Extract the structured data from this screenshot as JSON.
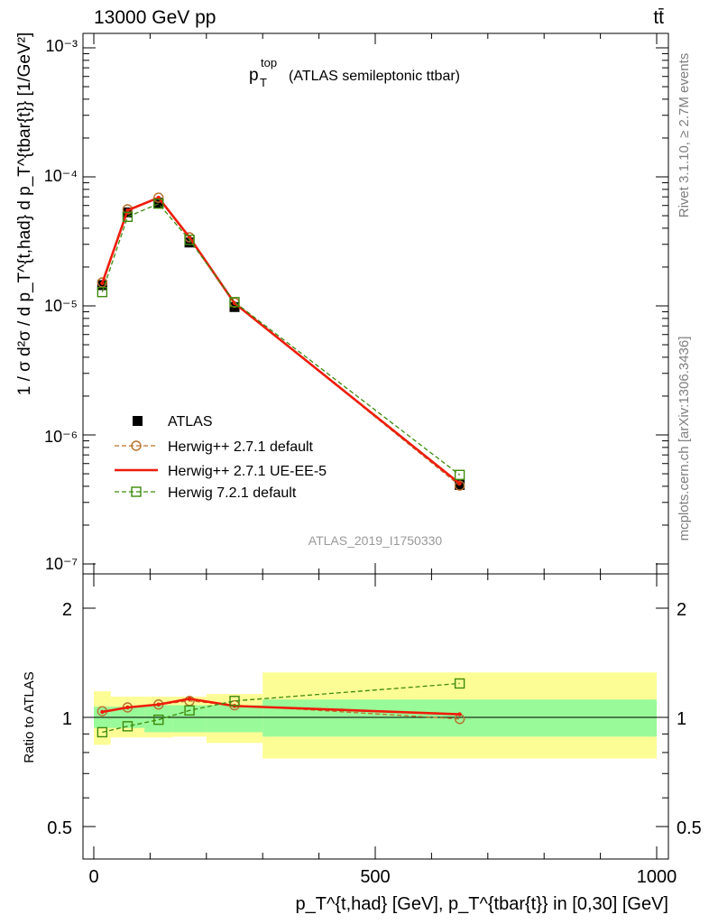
{
  "header": {
    "collision": "13000 GeV pp",
    "process": "tt̄"
  },
  "side_labels": {
    "rivet": "Rivet 3.1.10, ≥ 2.7M events",
    "source": "mcplots.cern.ch [arXiv:1306.3436]"
  },
  "chart_data": [
    {
      "type": "line",
      "panel": "main",
      "title_base": "p",
      "title_sub": "T",
      "title_sup": "top",
      "title_rest": "(ATLAS semileptonic ttbar)",
      "watermark": "ATLAS_2019_I1750330",
      "ylabel": "1 / σ d²σ / d p_T^{t,had} d p_T^{tbar{t}} [1/GeV²]",
      "yscale": "log",
      "ylim": [
        1e-07,
        0.0013
      ],
      "xlim": [
        -20,
        1010
      ],
      "ytick_labels": [
        "10⁻⁷",
        "10⁻⁶",
        "10⁻⁵",
        "10⁻⁴",
        "10⁻³"
      ],
      "legend_position": "lower-left",
      "series": [
        {
          "name": "ATLAS",
          "style": "data",
          "color": "#000000",
          "x": [
            15,
            60,
            115,
            170,
            250,
            650
          ],
          "values": [
            1.45e-05,
            5.3e-05,
            6.3e-05,
            3.1e-05,
            9.8e-06,
            4.1e-07
          ]
        },
        {
          "name": "Herwig++ 2.7.1 default",
          "style": "dashed-circle",
          "color": "#b8712d",
          "x": [
            15,
            60,
            115,
            170,
            250,
            650
          ],
          "values": [
            1.52e-05,
            5.6e-05,
            6.9e-05,
            3.4e-05,
            1.06e-05,
            4.05e-07
          ]
        },
        {
          "name": "Herwig++ 2.7.1 UE-EE-5",
          "style": "solid",
          "color": "#ee1c0a",
          "x": [
            15,
            60,
            115,
            170,
            250,
            650
          ],
          "values": [
            1.5e-05,
            5.5e-05,
            6.9e-05,
            3.4e-05,
            1.05e-05,
            4.2e-07
          ]
        },
        {
          "name": "Herwig 7.2.1 default",
          "style": "dashed-square",
          "color": "#3d8a0c",
          "x": [
            15,
            60,
            115,
            170,
            250,
            650
          ],
          "values": [
            1.28e-05,
            4.9e-05,
            6.2e-05,
            3.25e-05,
            1.07e-05,
            4.9e-07
          ]
        }
      ]
    },
    {
      "type": "line",
      "panel": "ratio",
      "ylabel": "Ratio to ATLAS",
      "xlabel": "p_T^{t,had} [GeV], p_T^{tbar{t}} in [0,30] [GeV]",
      "ylim": [
        0.38,
        2.45
      ],
      "ytick_labels": [
        "0.5",
        "1",
        "2"
      ],
      "xtick_labels": [
        "0",
        "500",
        "1000"
      ],
      "bands": [
        {
          "x0": 0,
          "x1": 30,
          "stat": [
            0.935,
            1.07
          ],
          "total": [
            0.84,
            1.18
          ]
        },
        {
          "x0": 30,
          "x1": 90,
          "stat": [
            0.935,
            1.07
          ],
          "total": [
            0.88,
            1.14
          ]
        },
        {
          "x0": 90,
          "x1": 140,
          "stat": [
            0.91,
            1.08
          ],
          "total": [
            0.88,
            1.14
          ]
        },
        {
          "x0": 140,
          "x1": 200,
          "stat": [
            0.91,
            1.08
          ],
          "total": [
            0.885,
            1.14
          ]
        },
        {
          "x0": 200,
          "x1": 300,
          "stat": [
            0.91,
            1.08
          ],
          "total": [
            0.85,
            1.16
          ]
        },
        {
          "x0": 300,
          "x1": 1000,
          "stat": [
            0.885,
            1.12
          ],
          "total": [
            0.77,
            1.33
          ]
        }
      ],
      "series": [
        {
          "name": "Herwig++ 2.7.1 default",
          "style": "dashed-circle",
          "color": "#b8712d",
          "x": [
            15,
            60,
            115,
            170,
            250,
            650
          ],
          "values": [
            1.04,
            1.065,
            1.085,
            1.11,
            1.08,
            0.99
          ]
        },
        {
          "name": "Herwig++ 2.7.1 UE-EE-5",
          "style": "solid",
          "color": "#ee1c0a",
          "x": [
            15,
            60,
            115,
            170,
            250,
            650
          ],
          "values": [
            1.035,
            1.065,
            1.085,
            1.125,
            1.075,
            1.02
          ]
        },
        {
          "name": "Herwig 7.2.1 default",
          "style": "dashed-square",
          "color": "#3d8a0c",
          "x": [
            15,
            60,
            115,
            170,
            250,
            650
          ],
          "values": [
            0.91,
            0.945,
            0.985,
            1.045,
            1.11,
            1.24
          ]
        }
      ]
    }
  ],
  "colors": {
    "stat_band": "#99fa99",
    "total_band": "#fdfd95",
    "watermark": "#999999",
    "side_text": "#7f7f7f"
  }
}
